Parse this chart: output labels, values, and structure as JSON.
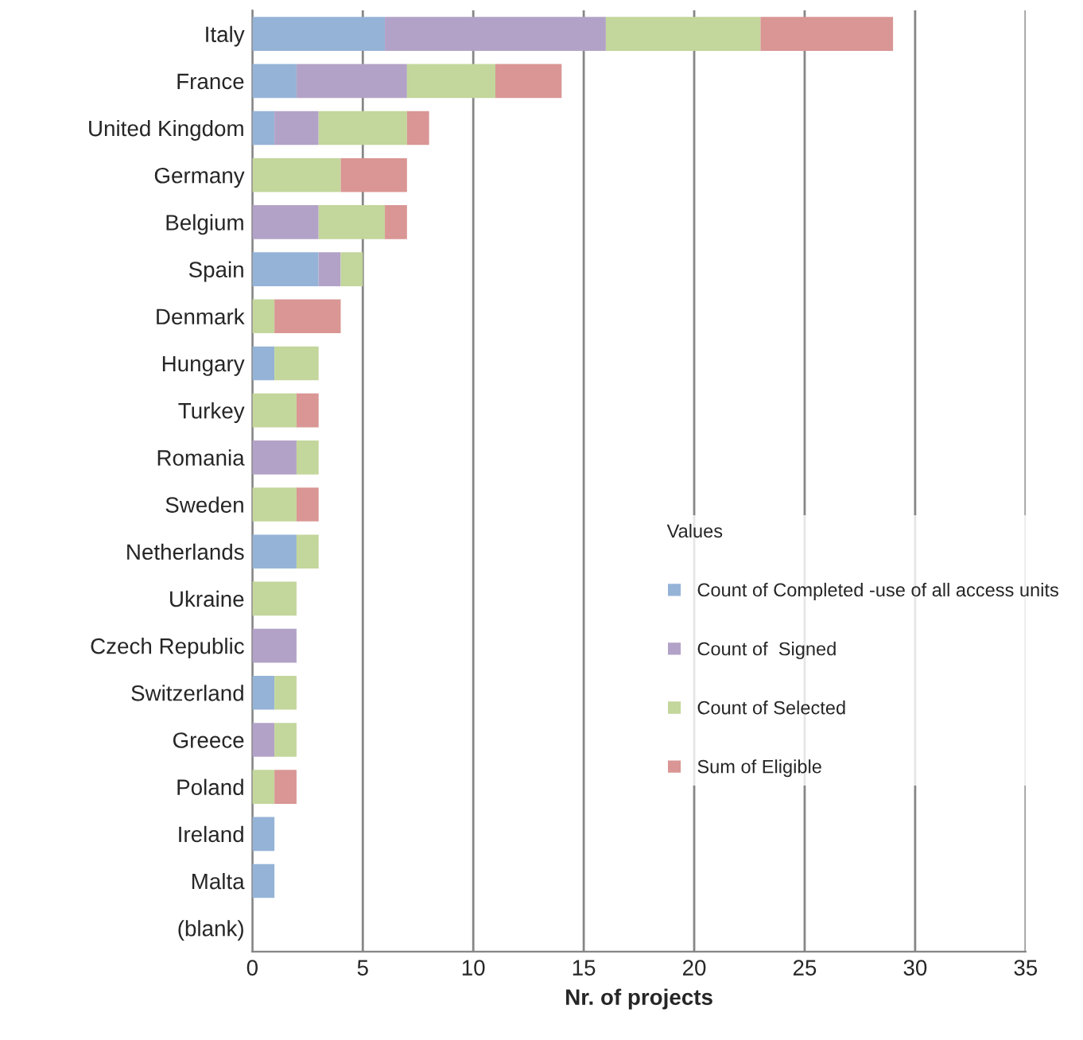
{
  "chart_data": {
    "type": "bar",
    "orientation": "horizontal",
    "stacked": true,
    "xlabel": "Nr. of projects",
    "legend_title": "Values",
    "legend": "right",
    "grid": "x",
    "categories": [
      "Italy",
      "France",
      "United Kingdom",
      "Germany",
      "Belgium",
      "Spain",
      "Denmark",
      "Hungary",
      "Turkey",
      "Romania",
      "Sweden",
      "Netherlands",
      "Ukraine",
      "Czech Republic",
      "Switzerland",
      "Greece",
      "Poland",
      "Ireland",
      "Malta",
      "(blank)"
    ],
    "xlim": [
      0,
      35
    ],
    "xticks": [
      0,
      5,
      10,
      15,
      20,
      25,
      30,
      35
    ],
    "series": [
      {
        "name": "Count of Completed -use of all access units",
        "color": "#95b3d7",
        "values": [
          6,
          2,
          1,
          0,
          0,
          3,
          0,
          1,
          0,
          0,
          0,
          2,
          0,
          0,
          1,
          0,
          0,
          1,
          1,
          0
        ]
      },
      {
        "name": "Count of  Signed",
        "color": "#b3a2c7",
        "values": [
          10,
          5,
          2,
          0,
          3,
          1,
          0,
          0,
          0,
          2,
          0,
          0,
          0,
          2,
          0,
          1,
          0,
          0,
          0,
          0
        ]
      },
      {
        "name": "Count of Selected",
        "color": "#c3d69b",
        "values": [
          7,
          4,
          4,
          4,
          3,
          1,
          1,
          2,
          2,
          1,
          2,
          1,
          2,
          0,
          1,
          1,
          1,
          0,
          0,
          0
        ]
      },
      {
        "name": "Sum of Eligible",
        "color": "#d99694",
        "values": [
          6,
          3,
          1,
          3,
          1,
          0,
          3,
          0,
          1,
          0,
          1,
          0,
          0,
          0,
          0,
          0,
          1,
          0,
          0,
          0
        ]
      }
    ]
  }
}
